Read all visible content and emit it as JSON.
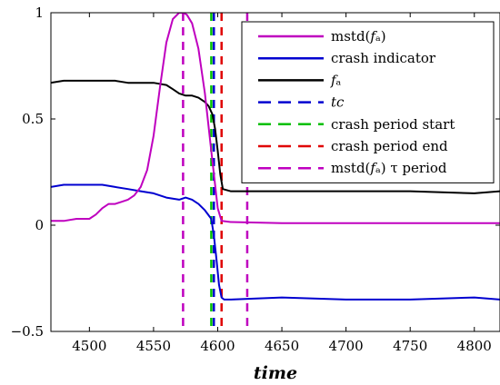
{
  "chart_data": {
    "type": "line",
    "title": "",
    "xlabel": "time",
    "ylabel": "",
    "xlim": [
      4470,
      4820
    ],
    "ylim": [
      -0.5,
      1
    ],
    "xticks": [
      4500,
      4550,
      4600,
      4650,
      4700,
      4750,
      4800
    ],
    "yticks": [
      -0.5,
      0,
      0.5,
      1
    ],
    "ytick_labels": [
      "−0.5",
      "0",
      "0.5",
      "1"
    ],
    "legend_position": "top-right",
    "grid": false,
    "series": [
      {
        "name": "mstd(f_a)",
        "legend_label": "mstd(𝑓ₐ)",
        "color": "#bf00bf",
        "style": "solid",
        "x": [
          4470,
          4480,
          4490,
          4500,
          4505,
          4510,
          4515,
          4520,
          4525,
          4530,
          4535,
          4540,
          4545,
          4550,
          4555,
          4560,
          4565,
          4570,
          4573,
          4576,
          4580,
          4585,
          4590,
          4595,
          4600,
          4603,
          4610,
          4650,
          4700,
          4750,
          4800,
          4820
        ],
        "y": [
          0.02,
          0.02,
          0.03,
          0.03,
          0.05,
          0.08,
          0.1,
          0.1,
          0.11,
          0.12,
          0.14,
          0.18,
          0.26,
          0.42,
          0.65,
          0.86,
          0.97,
          1.0,
          1.0,
          0.99,
          0.95,
          0.83,
          0.62,
          0.35,
          0.08,
          0.02,
          0.015,
          0.01,
          0.01,
          0.01,
          0.01,
          0.01
        ]
      },
      {
        "name": "crash indicator",
        "legend_label": "crash indicator",
        "color": "#0000d0",
        "style": "solid",
        "x": [
          4470,
          4480,
          4490,
          4500,
          4510,
          4520,
          4530,
          4540,
          4550,
          4560,
          4570,
          4575,
          4580,
          4585,
          4590,
          4595,
          4597,
          4599,
          4601,
          4603,
          4605,
          4610,
          4650,
          4700,
          4750,
          4800,
          4820
        ],
        "y": [
          0.18,
          0.19,
          0.19,
          0.19,
          0.19,
          0.18,
          0.17,
          0.16,
          0.15,
          0.13,
          0.12,
          0.13,
          0.12,
          0.1,
          0.07,
          0.03,
          -0.05,
          -0.16,
          -0.28,
          -0.34,
          -0.35,
          -0.35,
          -0.34,
          -0.35,
          -0.35,
          -0.34,
          -0.35
        ]
      },
      {
        "name": "f_a",
        "legend_label": "𝑓ₐ",
        "color": "#000000",
        "style": "solid",
        "x": [
          4470,
          4480,
          4490,
          4500,
          4510,
          4520,
          4530,
          4540,
          4550,
          4560,
          4565,
          4570,
          4575,
          4580,
          4585,
          4590,
          4593,
          4596,
          4598,
          4600,
          4602,
          4604,
          4610,
          4650,
          4700,
          4750,
          4800,
          4820
        ],
        "y": [
          0.67,
          0.68,
          0.68,
          0.68,
          0.68,
          0.68,
          0.67,
          0.67,
          0.67,
          0.66,
          0.64,
          0.62,
          0.61,
          0.61,
          0.6,
          0.58,
          0.56,
          0.52,
          0.45,
          0.35,
          0.24,
          0.17,
          0.16,
          0.16,
          0.16,
          0.16,
          0.15,
          0.16
        ]
      },
      {
        "name": "t_c",
        "legend_label": "𝑡𝑐",
        "color": "#0000d0",
        "style": "dashed",
        "vline": 4597
      },
      {
        "name": "crash period start",
        "legend_label": "crash period start",
        "color": "#00bf00",
        "style": "dashed",
        "vline": 4595
      },
      {
        "name": "crash period end",
        "legend_label": "crash period end",
        "color": "#e00000",
        "style": "dashed",
        "vline": 4603
      },
      {
        "name": "mstd(f_a) τ period",
        "legend_label": "mstd(𝑓ₐ) τ period",
        "color": "#bf00bf",
        "style": "dashed",
        "vlines": [
          4573,
          4623
        ]
      }
    ]
  }
}
